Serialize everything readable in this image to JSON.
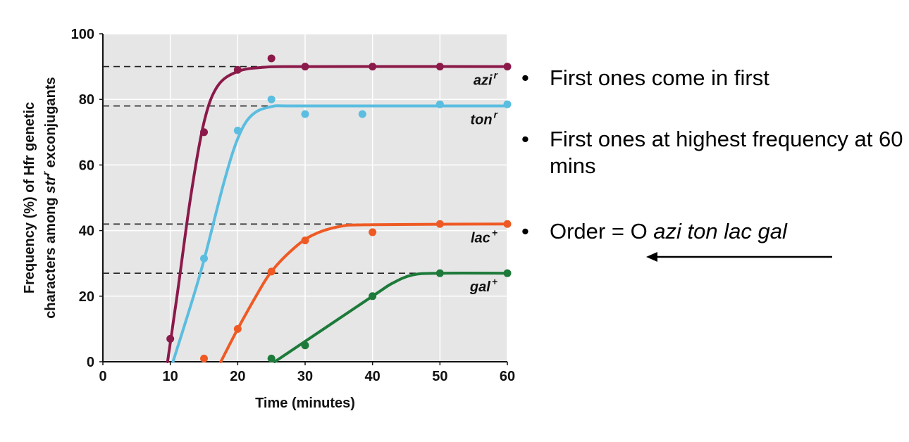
{
  "chart_data": {
    "type": "line",
    "xlabel": "Time (minutes)",
    "ylabel_line1": "Frequency (%) of Hfr genetic",
    "ylabel_line2_pre": "characters among ",
    "ylabel_line2_gene": "str",
    "ylabel_line2_sup": "r",
    "ylabel_line2_post": " exconjugants",
    "xlim": [
      0,
      60
    ],
    "ylim": [
      0,
      100
    ],
    "x_ticks": [
      "0",
      "10",
      "20",
      "30",
      "40",
      "50",
      "60"
    ],
    "y_ticks": [
      "0",
      "20",
      "40",
      "60",
      "80",
      "100"
    ],
    "grid": "light vertical and horizontal gridlines on gray background",
    "series": [
      {
        "name": "azi",
        "sup": "r",
        "color": "#8b1a4a",
        "plateau": 90,
        "points": [
          [
            10,
            7
          ],
          [
            15,
            70
          ],
          [
            20,
            89
          ],
          [
            25,
            92.5
          ],
          [
            30,
            90
          ],
          [
            40,
            90
          ],
          [
            50,
            90
          ],
          [
            60,
            90
          ]
        ],
        "curve": [
          [
            9.6,
            0
          ],
          [
            11,
            20
          ],
          [
            13,
            50
          ],
          [
            15,
            73
          ],
          [
            17,
            84
          ],
          [
            20,
            88.5
          ],
          [
            24,
            89.8
          ],
          [
            30,
            90
          ],
          [
            60,
            90
          ]
        ]
      },
      {
        "name": "ton",
        "sup": "r",
        "color": "#5bbde0",
        "plateau": 78,
        "points": [
          [
            15,
            31.5
          ],
          [
            20,
            70.5
          ],
          [
            25,
            80
          ],
          [
            30,
            75.5
          ],
          [
            38.5,
            75.5
          ],
          [
            50,
            78.5
          ],
          [
            60,
            78.5
          ]
        ],
        "curve": [
          [
            10.4,
            0
          ],
          [
            13,
            17
          ],
          [
            15,
            31
          ],
          [
            18,
            55
          ],
          [
            20,
            68
          ],
          [
            22,
            75
          ],
          [
            25,
            77.8
          ],
          [
            30,
            78
          ],
          [
            60,
            78
          ]
        ]
      },
      {
        "name": "lac",
        "sup": "+",
        "color": "#ef5a24",
        "plateau": 42,
        "points": [
          [
            15,
            1
          ],
          [
            20,
            10
          ],
          [
            25,
            27.5
          ],
          [
            30,
            37
          ],
          [
            40,
            39.5
          ],
          [
            50,
            42
          ],
          [
            60,
            42
          ]
        ],
        "curve": [
          [
            17.5,
            0
          ],
          [
            20,
            10
          ],
          [
            23,
            21
          ],
          [
            25,
            27.5
          ],
          [
            28,
            34
          ],
          [
            31,
            38.5
          ],
          [
            35,
            41.2
          ],
          [
            40,
            41.8
          ],
          [
            60,
            42
          ]
        ]
      },
      {
        "name": "gal",
        "sup": "+",
        "color": "#1d7a3a",
        "plateau": 27,
        "points": [
          [
            25,
            1
          ],
          [
            30,
            5
          ],
          [
            40,
            20
          ],
          [
            50,
            27
          ],
          [
            60,
            27
          ]
        ],
        "curve": [
          [
            25.5,
            0
          ],
          [
            40,
            20
          ],
          [
            43,
            24
          ],
          [
            46,
            26.5
          ],
          [
            50,
            27
          ],
          [
            60,
            27
          ]
        ]
      }
    ]
  },
  "bullets": {
    "marker": "•",
    "items": [
      "First ones come in first",
      "First ones at highest frequency at 60 mins"
    ],
    "order_prefix": "Order = O ",
    "order_genes": "azi ton lac gal"
  },
  "arrow": {
    "direction": "left",
    "color": "#000000"
  }
}
